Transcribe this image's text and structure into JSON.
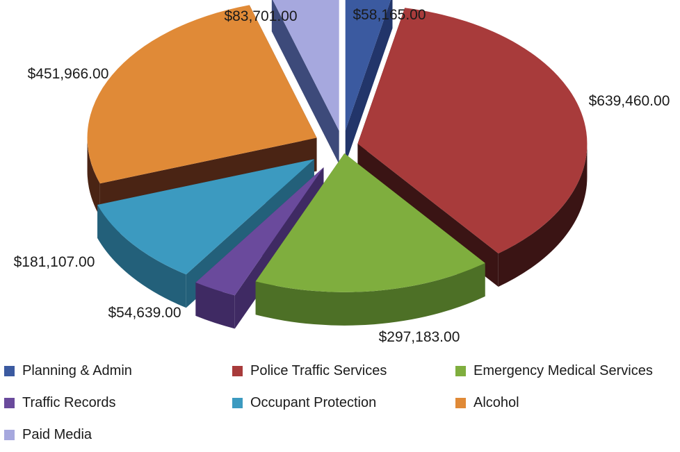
{
  "chart_data": {
    "type": "pie",
    "title": "",
    "style": "3d-exploded",
    "legend_position": "bottom",
    "slices": [
      {
        "name": "Planning & Admin",
        "value": 58165.0,
        "label": "$58,165.00",
        "color": "#3B5AA0",
        "side_color": "#22356a"
      },
      {
        "name": "Police Traffic Services",
        "value": 639460.0,
        "label": "$639,460.00",
        "color": "#A83B3B",
        "side_color": "#3a1414"
      },
      {
        "name": "Emergency Medical Services",
        "value": 297183.0,
        "label": "$297,183.00",
        "color": "#7FAE3E",
        "side_color": "#4d7026"
      },
      {
        "name": "Traffic Records",
        "value": 54639.0,
        "label": "$54,639.00",
        "color": "#6A4A9C",
        "side_color": "#3f2a63"
      },
      {
        "name": "Occupant Protection",
        "value": 181107.0,
        "label": "$181,107.00",
        "color": "#3C9AC0",
        "side_color": "#23607a"
      },
      {
        "name": "Alcohol",
        "value": 451966.0,
        "label": "$451,966.00",
        "color": "#E08A37",
        "side_color": "#4a2414"
      },
      {
        "name": "Paid Media",
        "value": 83701.0,
        "label": "$83,701.00",
        "color": "#A6A8DE",
        "side_color": "#3d4a7a"
      }
    ]
  }
}
